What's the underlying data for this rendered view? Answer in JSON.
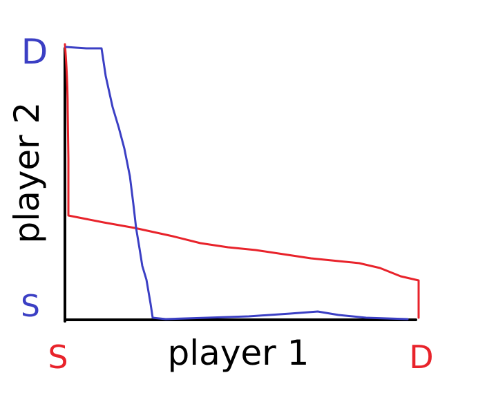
{
  "diagram": {
    "x_axis_label": "player 1",
    "y_axis_label": "player 2",
    "x_start_label": "S",
    "x_end_label": "D",
    "y_start_label": "S",
    "y_end_label": "D"
  },
  "colors": {
    "player1": "#e8232b",
    "player2": "#3b3fc4",
    "axis": "#000000"
  }
}
